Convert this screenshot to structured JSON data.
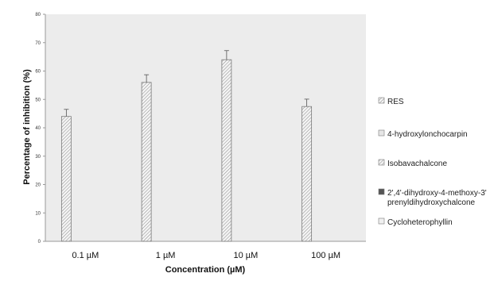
{
  "chart_data": {
    "type": "bar",
    "title": "",
    "xlabel": "Concentration (µM)",
    "ylabel": "Percentage of inhibition (%)",
    "ylim": [
      0,
      80
    ],
    "yticks": [
      0,
      10,
      20,
      30,
      40,
      50,
      60,
      70,
      80
    ],
    "categories": [
      "0.1 µM",
      "1 µM",
      "10 µM",
      "100 µM"
    ],
    "series": [
      {
        "name": "RES",
        "values": [
          44,
          56,
          64,
          47.5
        ],
        "errors": [
          2.5,
          2.7,
          3.2,
          2.6
        ],
        "color": "#d9d9d9",
        "pattern": "hatch"
      },
      {
        "name": "4-hydroxylonchocarpin",
        "values": [
          null,
          null,
          null,
          null
        ],
        "color": "#e6e6e6",
        "pattern": "light"
      },
      {
        "name": "Isobavachalcone",
        "values": [
          null,
          null,
          null,
          null
        ],
        "color": "#c8c8c8",
        "pattern": "hatch"
      },
      {
        "name": "2',4'-dihydroxy-4-methoxy-3' prenyldihydroxychalcone",
        "name_lines": [
          "2',4'-dihydroxy-4-methoxy-3'",
          "prenyldihydroxychalcone"
        ],
        "values": [
          null,
          null,
          null,
          null
        ],
        "color": "#555555",
        "pattern": "dark"
      },
      {
        "name": "Cycloheterophyllin",
        "values": [
          null,
          null,
          null,
          null
        ],
        "color": "#f0f0f0",
        "pattern": "light"
      }
    ],
    "grid": false,
    "legend_position": "right",
    "plot_background": "#ececec"
  }
}
